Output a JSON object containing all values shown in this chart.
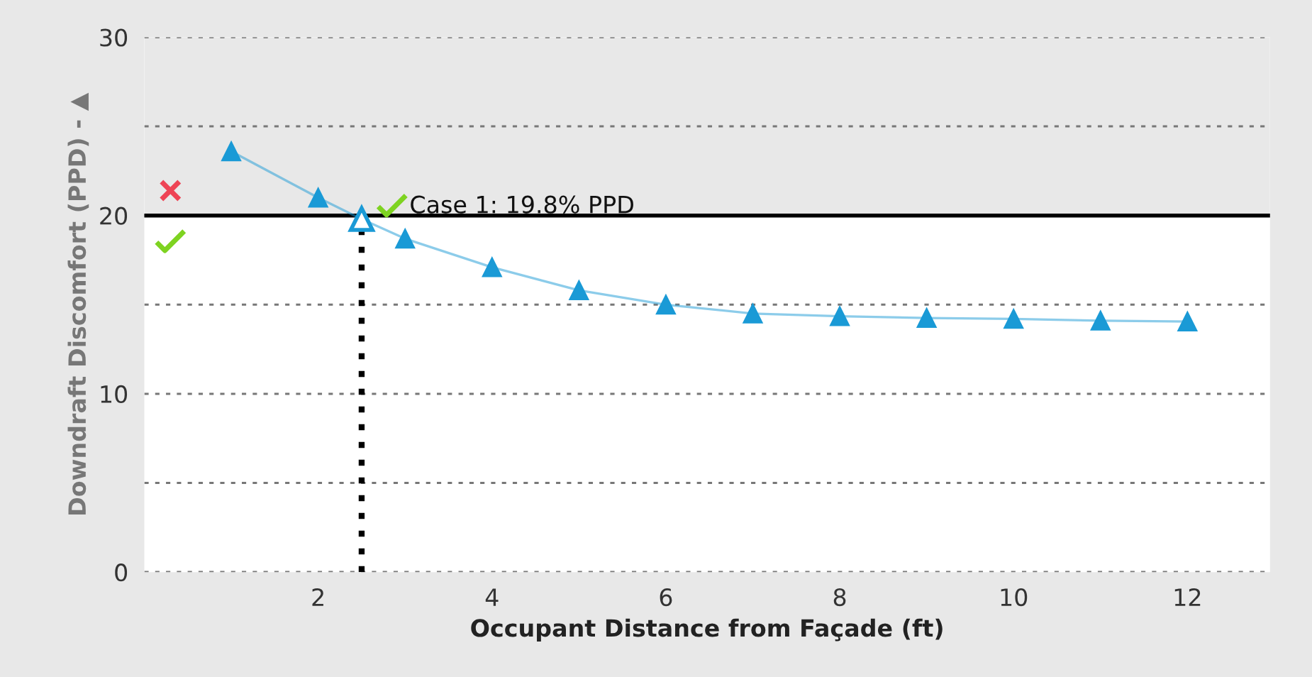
{
  "chart_data": {
    "type": "line",
    "xlabel": "Occupant Distance from Façade (ft)",
    "ylabel": "Downdraft Discomfort (PPD) - ▲",
    "series": [
      {
        "color": "#1a9ad6",
        "x": [
          1,
          2,
          2.5,
          3,
          4,
          5,
          6,
          7,
          8,
          9,
          10,
          11,
          12
        ],
        "values": [
          23.6,
          21.0,
          19.8,
          18.7,
          17.1,
          15.8,
          15.0,
          14.5,
          14.35,
          14.25,
          14.2,
          14.1,
          14.05
        ]
      }
    ],
    "marker": "triangle",
    "xlim": [
      0,
      12.95
    ],
    "xticks": [
      2,
      4,
      6,
      8,
      10,
      12
    ],
    "ylim": [
      0,
      30
    ],
    "yticks": [
      0,
      {
        "value": 5,
        "label": null
      },
      10,
      {
        "value": 15,
        "label": null
      },
      20,
      {
        "value": 25,
        "label": null
      },
      30
    ],
    "grid": "y",
    "ref_lines": [
      {
        "axis": "y",
        "value": 20,
        "color": "#000000",
        "line_style": "solid"
      },
      {
        "axis": "x",
        "value": 2.5,
        "color": "#000000",
        "line_style": "dotted"
      }
    ],
    "bands": [
      {
        "axis": "y",
        "from": 20,
        "to": 30,
        "color": "#e8e8e8"
      }
    ],
    "annotations": [
      {
        "text": "Case 1: 19.8% PPD",
        "x": 2.5,
        "y": 19.8
      }
    ]
  }
}
